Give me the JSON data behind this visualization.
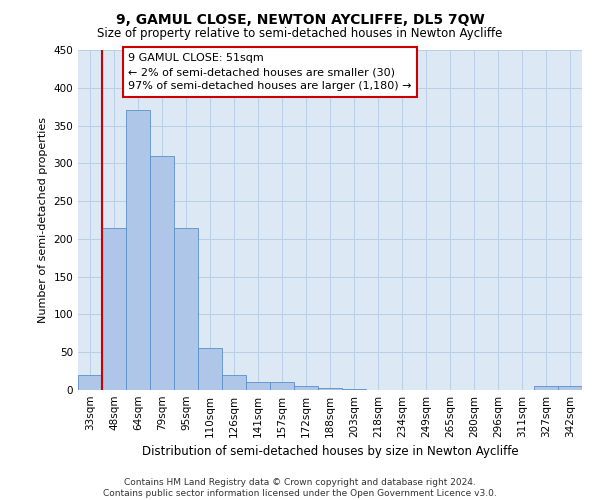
{
  "title": "9, GAMUL CLOSE, NEWTON AYCLIFFE, DL5 7QW",
  "subtitle": "Size of property relative to semi-detached houses in Newton Aycliffe",
  "xlabel": "Distribution of semi-detached houses by size in Newton Aycliffe",
  "ylabel": "Number of semi-detached properties",
  "footer_line1": "Contains HM Land Registry data © Crown copyright and database right 2024.",
  "footer_line2": "Contains public sector information licensed under the Open Government Licence v3.0.",
  "annotation_title": "9 GAMUL CLOSE: 51sqm",
  "annotation_line1": "← 2% of semi-detached houses are smaller (30)",
  "annotation_line2": "97% of semi-detached houses are larger (1,180) →",
  "categories": [
    "33sqm",
    "48sqm",
    "64sqm",
    "79sqm",
    "95sqm",
    "110sqm",
    "126sqm",
    "141sqm",
    "157sqm",
    "172sqm",
    "188sqm",
    "203sqm",
    "218sqm",
    "234sqm",
    "249sqm",
    "265sqm",
    "280sqm",
    "296sqm",
    "311sqm",
    "327sqm",
    "342sqm"
  ],
  "values": [
    20,
    215,
    370,
    310,
    215,
    55,
    20,
    10,
    10,
    5,
    2,
    1,
    0,
    0,
    0,
    0,
    0,
    0,
    0,
    5,
    5
  ],
  "bar_color": "#aec6e8",
  "bar_edge_color": "#5b8fc9",
  "marker_line_color": "#cc0000",
  "annotation_box_edge_color": "#cc0000",
  "annotation_box_fill": "#ffffff",
  "plot_bg_color": "#dce9f5",
  "fig_bg_color": "#ffffff",
  "grid_color": "#b8cfe8",
  "ylim": [
    0,
    450
  ],
  "yticks": [
    0,
    50,
    100,
    150,
    200,
    250,
    300,
    350,
    400,
    450
  ],
  "marker_bin_index": 1,
  "title_fontsize": 10,
  "subtitle_fontsize": 8.5,
  "ylabel_fontsize": 8,
  "xlabel_fontsize": 8.5,
  "tick_fontsize": 7.5,
  "footer_fontsize": 6.5,
  "ann_fontsize": 8
}
